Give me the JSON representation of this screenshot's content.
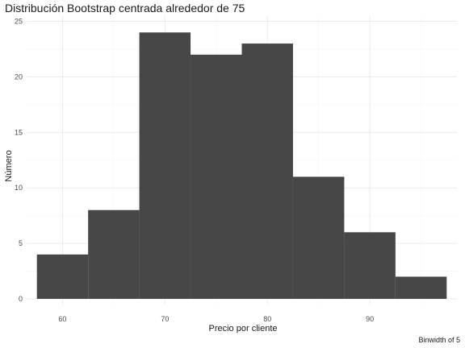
{
  "chart_data": {
    "type": "bar",
    "title": "Distribución Bootstrap centrada alrededor de 75",
    "xlabel": "Precio por cliente",
    "ylabel": "Número",
    "caption": "Binwidth of 5",
    "bins": [
      {
        "x0": 57.5,
        "x1": 62.5,
        "count": 4
      },
      {
        "x0": 62.5,
        "x1": 67.5,
        "count": 8
      },
      {
        "x0": 67.5,
        "x1": 72.5,
        "count": 24
      },
      {
        "x0": 72.5,
        "x1": 77.5,
        "count": 22
      },
      {
        "x0": 77.5,
        "x1": 82.5,
        "count": 23
      },
      {
        "x0": 82.5,
        "x1": 87.5,
        "count": 11
      },
      {
        "x0": 87.5,
        "x1": 92.5,
        "count": 6
      },
      {
        "x0": 92.5,
        "x1": 97.5,
        "count": 2
      }
    ],
    "xlim": [
      56.5,
      98.5
    ],
    "ylim": [
      0,
      25
    ],
    "xticks": [
      60,
      70,
      80,
      90
    ],
    "yticks": [
      0,
      5,
      10,
      15,
      20,
      25
    ],
    "grid": true,
    "bar_color": "#474747"
  }
}
